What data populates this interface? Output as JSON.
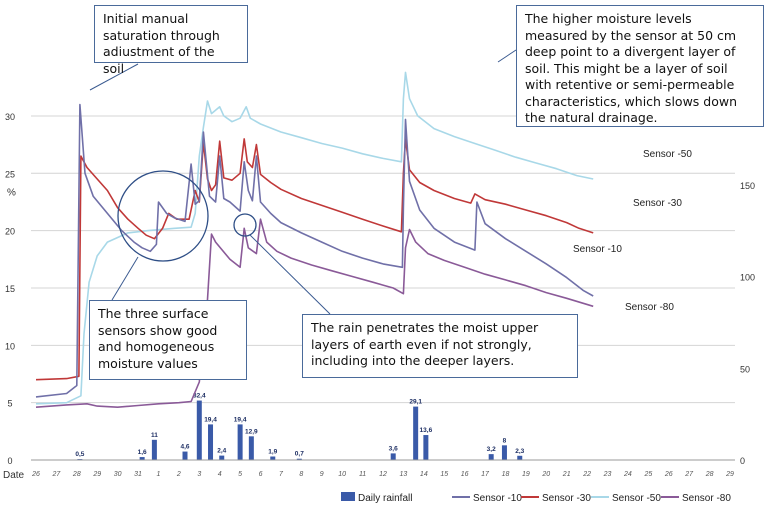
{
  "chart_data": {
    "type": "line",
    "left_axis": {
      "label": "%",
      "ylim": [
        0,
        32
      ],
      "ticks": [
        0,
        5,
        10,
        15,
        20,
        25,
        30
      ]
    },
    "right_axis": {
      "ylim": [
        0,
        200
      ],
      "ticks": [
        0,
        50,
        100,
        150
      ]
    },
    "x_axis": {
      "label": "Date",
      "ticks": [
        "26",
        "27",
        "28",
        "29",
        "30",
        "31",
        "1",
        "2",
        "3",
        "4",
        "5",
        "6",
        "7",
        "8",
        "9",
        "10",
        "11",
        "12",
        "13",
        "14",
        "15",
        "16",
        "17",
        "18",
        "19",
        "20",
        "21",
        "22",
        "23",
        "24",
        "25",
        "26",
        "27",
        "28",
        "29"
      ]
    },
    "grid": "horizontal",
    "legend_position": "bottom",
    "legend": [
      "Daily rainfall",
      "Sensor -10",
      "Sensor -30",
      "Sensor -50",
      "Sensor -80"
    ],
    "colors": {
      "rain": "#3a5aa8",
      "s10": "#7070a8",
      "s30": "#c03838",
      "s50": "#a8d8e8",
      "s80": "#8a5a98"
    },
    "rainfall": {
      "name": "Daily rainfall",
      "bars": [
        {
          "x": 2.15,
          "value": 0.5,
          "label": "0,5"
        },
        {
          "x": 5.2,
          "value": 1.6,
          "label": "1,6"
        },
        {
          "x": 5.8,
          "value": 11,
          "label": "11"
        },
        {
          "x": 7.3,
          "value": 4.6,
          "label": "4,6"
        },
        {
          "x": 8.0,
          "value": 32.4,
          "label": "32,4"
        },
        {
          "x": 8.55,
          "value": 19.4,
          "label": "19,4"
        },
        {
          "x": 9.1,
          "value": 2.4,
          "label": "2,4"
        },
        {
          "x": 10.0,
          "value": 19.4,
          "label": "19,4"
        },
        {
          "x": 10.55,
          "value": 12.9,
          "label": "12,9"
        },
        {
          "x": 11.6,
          "value": 1.9,
          "label": "1,9"
        },
        {
          "x": 12.9,
          "value": 0.7,
          "label": "0,7"
        },
        {
          "x": 17.5,
          "value": 3.6,
          "label": "3,6"
        },
        {
          "x": 18.6,
          "value": 29.1,
          "label": "29,1"
        },
        {
          "x": 19.1,
          "value": 13.6,
          "label": "13,6"
        },
        {
          "x": 22.3,
          "value": 3.2,
          "label": "3,2"
        },
        {
          "x": 22.95,
          "value": 8,
          "label": "8"
        },
        {
          "x": 23.7,
          "value": 2.3,
          "label": "2,3"
        }
      ]
    },
    "series": [
      {
        "key": "s50",
        "name": "Sensor -50",
        "end_label": "Sensor -50",
        "points": [
          [
            0,
            4.9
          ],
          [
            1.5,
            5.0
          ],
          [
            2.2,
            5.6
          ],
          [
            2.35,
            11
          ],
          [
            2.6,
            15.5
          ],
          [
            3.0,
            17.8
          ],
          [
            3.5,
            19.0
          ],
          [
            4.5,
            19.8
          ],
          [
            5.5,
            20.0
          ],
          [
            6.8,
            20.2
          ],
          [
            7.6,
            20.3
          ],
          [
            7.8,
            21.5
          ],
          [
            8.0,
            26.5
          ],
          [
            8.2,
            29
          ],
          [
            8.4,
            31.3
          ],
          [
            8.6,
            30.2
          ],
          [
            9.0,
            30.8
          ],
          [
            9.2,
            30.0
          ],
          [
            9.6,
            29.5
          ],
          [
            10.0,
            29.8
          ],
          [
            10.3,
            30.8
          ],
          [
            10.5,
            29.8
          ],
          [
            11.0,
            29.3
          ],
          [
            12.0,
            28.6
          ],
          [
            13.0,
            28.1
          ],
          [
            14.0,
            27.6
          ],
          [
            15.0,
            27.2
          ],
          [
            16.0,
            26.7
          ],
          [
            17.0,
            26.3
          ],
          [
            17.9,
            26.0
          ],
          [
            18.0,
            31.5
          ],
          [
            18.1,
            33.8
          ],
          [
            18.3,
            31.5
          ],
          [
            18.7,
            30.0
          ],
          [
            19.5,
            28.9
          ],
          [
            20.5,
            28.2
          ],
          [
            21.5,
            27.6
          ],
          [
            22.5,
            27.0
          ],
          [
            23.5,
            26.4
          ],
          [
            24.5,
            25.9
          ],
          [
            25.5,
            25.4
          ],
          [
            26.5,
            24.8
          ],
          [
            27.3,
            24.5
          ]
        ]
      },
      {
        "key": "s30",
        "name": "Sensor -30",
        "end_label": "Sensor -30",
        "points": [
          [
            0,
            7.0
          ],
          [
            1.5,
            7.1
          ],
          [
            2.1,
            7.3
          ],
          [
            2.2,
            26.5
          ],
          [
            2.5,
            25.5
          ],
          [
            3.0,
            24.5
          ],
          [
            3.5,
            23.5
          ],
          [
            4.0,
            22.0
          ],
          [
            4.5,
            21.0
          ],
          [
            5.0,
            20.2
          ],
          [
            5.4,
            19.6
          ],
          [
            5.8,
            19.3
          ],
          [
            6.2,
            20.2
          ],
          [
            6.5,
            21.5
          ],
          [
            6.9,
            21.0
          ],
          [
            7.5,
            21.0
          ],
          [
            7.8,
            23.5
          ],
          [
            8.0,
            22.5
          ],
          [
            8.2,
            27.7
          ],
          [
            8.4,
            24.5
          ],
          [
            8.6,
            23.5
          ],
          [
            8.8,
            24.0
          ],
          [
            9.0,
            27.8
          ],
          [
            9.2,
            24.6
          ],
          [
            9.6,
            24.4
          ],
          [
            10.0,
            25.0
          ],
          [
            10.2,
            28.0
          ],
          [
            10.35,
            26.0
          ],
          [
            10.6,
            25.5
          ],
          [
            10.8,
            27.5
          ],
          [
            11.0,
            24.9
          ],
          [
            11.5,
            24.2
          ],
          [
            12.0,
            23.6
          ],
          [
            13.0,
            22.8
          ],
          [
            14.0,
            22.2
          ],
          [
            15.0,
            21.6
          ],
          [
            16.0,
            21.0
          ],
          [
            17.0,
            20.4
          ],
          [
            17.9,
            19.9
          ],
          [
            18.0,
            25
          ],
          [
            18.1,
            28.0
          ],
          [
            18.3,
            25.3
          ],
          [
            18.8,
            24.2
          ],
          [
            19.5,
            23.5
          ],
          [
            20.5,
            22.8
          ],
          [
            21.3,
            22.4
          ],
          [
            21.5,
            23.2
          ],
          [
            22.0,
            22.7
          ],
          [
            23.0,
            22.3
          ],
          [
            24.0,
            21.8
          ],
          [
            25.0,
            21.3
          ],
          [
            26.0,
            20.7
          ],
          [
            26.6,
            20.2
          ],
          [
            27.3,
            19.8
          ]
        ]
      },
      {
        "key": "s10",
        "name": "Sensor -10",
        "end_label": "Sensor -10",
        "points": [
          [
            0,
            5.5
          ],
          [
            1.5,
            5.8
          ],
          [
            2.0,
            6.5
          ],
          [
            2.15,
            31
          ],
          [
            2.4,
            25
          ],
          [
            2.8,
            23.0
          ],
          [
            3.5,
            21.5
          ],
          [
            4.2,
            20.0
          ],
          [
            4.8,
            19.0
          ],
          [
            5.2,
            18.5
          ],
          [
            5.6,
            18.2
          ],
          [
            5.9,
            18.8
          ],
          [
            6.0,
            22.5
          ],
          [
            6.4,
            21.5
          ],
          [
            6.8,
            21.1
          ],
          [
            7.3,
            20.8
          ],
          [
            7.6,
            25.8
          ],
          [
            7.8,
            22.3
          ],
          [
            8.0,
            22.6
          ],
          [
            8.2,
            28.6
          ],
          [
            8.5,
            23.0
          ],
          [
            8.8,
            22.5
          ],
          [
            9.0,
            26.5
          ],
          [
            9.2,
            22.8
          ],
          [
            9.5,
            22.5
          ],
          [
            10.0,
            21.7
          ],
          [
            10.2,
            26.0
          ],
          [
            10.4,
            23.5
          ],
          [
            10.6,
            22.6
          ],
          [
            10.8,
            26.5
          ],
          [
            11.0,
            22.5
          ],
          [
            11.5,
            21.5
          ],
          [
            12.0,
            20.7
          ],
          [
            13.0,
            19.8
          ],
          [
            14.0,
            19.0
          ],
          [
            15.0,
            18.2
          ],
          [
            16.0,
            17.6
          ],
          [
            17.0,
            17.1
          ],
          [
            17.95,
            16.8
          ],
          [
            18.0,
            22
          ],
          [
            18.1,
            29.7
          ],
          [
            18.3,
            24.3
          ],
          [
            18.8,
            21.8
          ],
          [
            19.5,
            20.2
          ],
          [
            20.5,
            19.0
          ],
          [
            21.5,
            18.3
          ],
          [
            21.6,
            22.5
          ],
          [
            22.0,
            20.6
          ],
          [
            23.0,
            19.3
          ],
          [
            24.0,
            18.2
          ],
          [
            25.0,
            17.1
          ],
          [
            26.0,
            15.9
          ],
          [
            26.8,
            14.8
          ],
          [
            27.3,
            14.3
          ]
        ]
      },
      {
        "key": "s80",
        "name": "Sensor -80",
        "end_label": "Sensor -80",
        "points": [
          [
            0,
            4.6
          ],
          [
            1.5,
            4.8
          ],
          [
            2.5,
            4.9
          ],
          [
            3.0,
            4.7
          ],
          [
            4.0,
            4.6
          ],
          [
            5.0,
            4.75
          ],
          [
            6.0,
            4.9
          ],
          [
            7.0,
            5.0
          ],
          [
            7.6,
            5.1
          ],
          [
            8.0,
            6.8
          ],
          [
            8.4,
            14.0
          ],
          [
            8.6,
            19.7
          ],
          [
            8.8,
            19.0
          ],
          [
            9.5,
            17.5
          ],
          [
            10.0,
            16.8
          ],
          [
            10.2,
            20.2
          ],
          [
            10.4,
            18.5
          ],
          [
            10.8,
            18.0
          ],
          [
            11.0,
            21.0
          ],
          [
            11.3,
            19.0
          ],
          [
            11.8,
            18.2
          ],
          [
            12.5,
            17.6
          ],
          [
            13.5,
            17.0
          ],
          [
            14.5,
            16.5
          ],
          [
            15.5,
            16.0
          ],
          [
            16.5,
            15.5
          ],
          [
            17.5,
            15.0
          ],
          [
            18.0,
            14.5
          ],
          [
            18.1,
            18.5
          ],
          [
            18.3,
            20.1
          ],
          [
            18.6,
            19.0
          ],
          [
            19.2,
            18.0
          ],
          [
            20.0,
            17.4
          ],
          [
            21.0,
            16.8
          ],
          [
            22.0,
            16.2
          ],
          [
            23.0,
            15.7
          ],
          [
            24.0,
            15.2
          ],
          [
            25.0,
            14.6
          ],
          [
            26.0,
            14.1
          ],
          [
            27.3,
            13.4
          ]
        ]
      }
    ],
    "annotations": [
      "Initial manual saturation through adiustment of the soil",
      "The higher moisture levels measured by the sensor at 50 cm deep point to a divergent layer of soil. This might be a layer of soil with retentive or semi-permeable characteristics, which slows down the natural drainage.",
      "The three surface sensors show good and homogeneous moisture values",
      "The rain penetrates the moist upper layers of earth even if not strongly, including into the deeper layers."
    ]
  }
}
